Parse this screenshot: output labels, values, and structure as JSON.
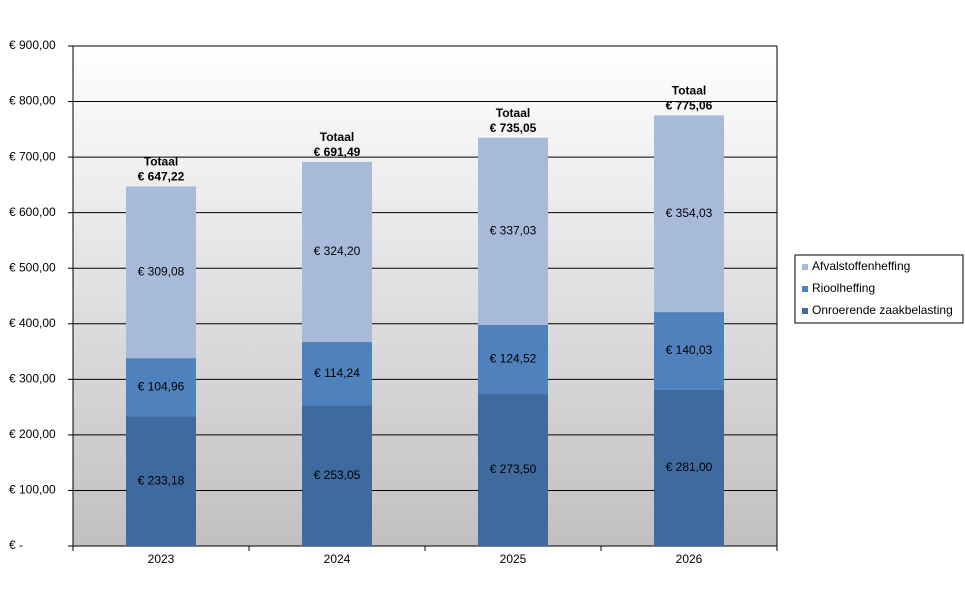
{
  "chart_data": {
    "type": "stacked-bar",
    "categories": [
      "2023",
      "2024",
      "2025",
      "2026"
    ],
    "series": [
      {
        "name": "Onroerende zaakbelasting",
        "color": "#3f6a9e",
        "label_color": "#ffffff",
        "values": [
          233.18,
          253.05,
          273.5,
          281.0
        ],
        "value_labels": [
          "€ 233,18",
          "€ 253,05",
          "€ 273,50",
          "€ 281,00"
        ]
      },
      {
        "name": "Rioolheffing",
        "color": "#4f81bd",
        "label_color": "#ffffff",
        "values": [
          104.96,
          114.24,
          124.52,
          140.03
        ],
        "value_labels": [
          "€ 104,96",
          "€ 114,24",
          "€ 124,52",
          "€ 140,03"
        ]
      },
      {
        "name": "Afvalstoffenheffing",
        "color": "#a8bada",
        "label_color": "#1a1a1a",
        "values": [
          309.08,
          324.2,
          337.03,
          354.03
        ],
        "value_labels": [
          "€ 309,08",
          "€ 324,20",
          "€ 337,03",
          "€ 354,03"
        ]
      }
    ],
    "totals": {
      "label": "Totaal",
      "values": [
        647.22,
        691.49,
        735.05,
        775.06
      ],
      "value_labels": [
        "€ 647,22",
        "€ 691,49",
        "€ 735,05",
        "€ 775,06"
      ]
    },
    "ylim": [
      0,
      900
    ],
    "yticks": [
      {
        "value": 0,
        "label": "€ -"
      },
      {
        "value": 100,
        "label": "€ 100,00"
      },
      {
        "value": 200,
        "label": "€ 200,00"
      },
      {
        "value": 300,
        "label": "€ 300,00"
      },
      {
        "value": 400,
        "label": "€ 400,00"
      },
      {
        "value": 500,
        "label": "€ 500,00"
      },
      {
        "value": 600,
        "label": "€ 600,00"
      },
      {
        "value": 700,
        "label": "€ 700,00"
      },
      {
        "value": 800,
        "label": "€ 800,00"
      },
      {
        "value": 900,
        "label": "€ 900,00"
      }
    ],
    "grid": true,
    "legend": "right"
  }
}
